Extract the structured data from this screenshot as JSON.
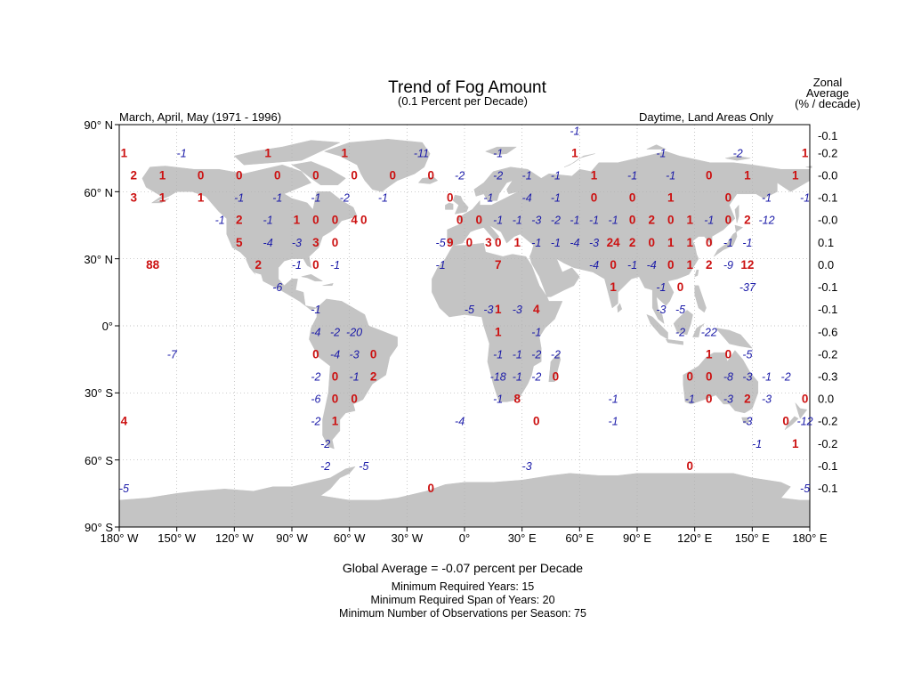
{
  "title": "Trend of Fog Amount",
  "subtitle": "(0.1 Percent per Decade)",
  "season_label": "March, April, May (1971 - 1996)",
  "scope_label": "Daytime, Land Areas Only",
  "zonal_header": [
    "Zonal",
    "Average",
    "(% / decade)"
  ],
  "lat_labels": [
    "90° N",
    "60° N",
    "30° N",
    "0°",
    "30° S",
    "60° S",
    "90° S"
  ],
  "lon_labels": [
    "180° W",
    "150° W",
    "120° W",
    "90° W",
    "60° W",
    "30° W",
    "0°",
    "30° E",
    "60° E",
    "90° E",
    "120° E",
    "150° E",
    "180° E"
  ],
  "zonal_averages": [
    "-0.1",
    "-0.2",
    "-0.0",
    "-0.1",
    "-0.0",
    "0.1",
    "0.0",
    "-0.1",
    "-0.1",
    "-0.6",
    "-0.2",
    "-0.3",
    "0.0",
    "-0.2",
    "-0.2",
    "-0.1",
    "-0.1"
  ],
  "colors": {
    "land": "#c4c4c4",
    "positive": "#cc1111",
    "negative": "#1a1aa8",
    "grid": "#b0b0b0"
  },
  "trend_values": [
    {
      "lon": -177.5,
      "lat": 77.5,
      "v": "1"
    },
    {
      "lon": -147.5,
      "lat": 77.5,
      "v": "-1"
    },
    {
      "lon": -102.5,
      "lat": 77.5,
      "v": "1"
    },
    {
      "lon": -62.5,
      "lat": 77.5,
      "v": "1"
    },
    {
      "lon": -22.5,
      "lat": 77.5,
      "v": "-11"
    },
    {
      "lon": 17.5,
      "lat": 77.5,
      "v": "-1"
    },
    {
      "lon": 57.5,
      "lat": 87.5,
      "v": "-1"
    },
    {
      "lon": 57.5,
      "lat": 77.5,
      "v": "1"
    },
    {
      "lon": 102.5,
      "lat": 77.5,
      "v": "-1"
    },
    {
      "lon": 142.5,
      "lat": 77.5,
      "v": "-2"
    },
    {
      "lon": 177.5,
      "lat": 77.5,
      "v": "1"
    },
    {
      "lon": -172.5,
      "lat": 67.5,
      "v": "2"
    },
    {
      "lon": -157.5,
      "lat": 67.5,
      "v": "1"
    },
    {
      "lon": -137.5,
      "lat": 67.5,
      "v": "0"
    },
    {
      "lon": -117.5,
      "lat": 67.5,
      "v": "0"
    },
    {
      "lon": -97.5,
      "lat": 67.5,
      "v": "0"
    },
    {
      "lon": -77.5,
      "lat": 67.5,
      "v": "0"
    },
    {
      "lon": -57.5,
      "lat": 67.5,
      "v": "0"
    },
    {
      "lon": -37.5,
      "lat": 67.5,
      "v": "0"
    },
    {
      "lon": -17.5,
      "lat": 67.5,
      "v": "0"
    },
    {
      "lon": -2.5,
      "lat": 67.5,
      "v": "-2"
    },
    {
      "lon": 17.5,
      "lat": 67.5,
      "v": "-2"
    },
    {
      "lon": 32.5,
      "lat": 67.5,
      "v": "-1"
    },
    {
      "lon": 47.5,
      "lat": 67.5,
      "v": "-1"
    },
    {
      "lon": 67.5,
      "lat": 67.5,
      "v": "1"
    },
    {
      "lon": 87.5,
      "lat": 67.5,
      "v": "-1"
    },
    {
      "lon": 107.5,
      "lat": 67.5,
      "v": "-1"
    },
    {
      "lon": 127.5,
      "lat": 67.5,
      "v": "0"
    },
    {
      "lon": 147.5,
      "lat": 67.5,
      "v": "1"
    },
    {
      "lon": 172.5,
      "lat": 67.5,
      "v": "1"
    },
    {
      "lon": -172.5,
      "lat": 57.5,
      "v": "3"
    },
    {
      "lon": -157.5,
      "lat": 57.5,
      "v": "1"
    },
    {
      "lon": -137.5,
      "lat": 57.5,
      "v": "1"
    },
    {
      "lon": -117.5,
      "lat": 57.5,
      "v": "-1"
    },
    {
      "lon": -97.5,
      "lat": 57.5,
      "v": "-1"
    },
    {
      "lon": -77.5,
      "lat": 57.5,
      "v": "-1"
    },
    {
      "lon": -62.5,
      "lat": 57.5,
      "v": "-2"
    },
    {
      "lon": -42.5,
      "lat": 57.5,
      "v": "-1"
    },
    {
      "lon": -7.5,
      "lat": 57.5,
      "v": "0"
    },
    {
      "lon": 12.5,
      "lat": 57.5,
      "v": "-1"
    },
    {
      "lon": 32.5,
      "lat": 57.5,
      "v": "-4"
    },
    {
      "lon": 47.5,
      "lat": 57.5,
      "v": "-1"
    },
    {
      "lon": 67.5,
      "lat": 57.5,
      "v": "0"
    },
    {
      "lon": 87.5,
      "lat": 57.5,
      "v": "0"
    },
    {
      "lon": 107.5,
      "lat": 57.5,
      "v": "1"
    },
    {
      "lon": 137.5,
      "lat": 57.5,
      "v": "0"
    },
    {
      "lon": 157.5,
      "lat": 57.5,
      "v": "-1"
    },
    {
      "lon": 177.5,
      "lat": 57.5,
      "v": "-1"
    },
    {
      "lon": -127.5,
      "lat": 47.5,
      "v": "-1"
    },
    {
      "lon": -117.5,
      "lat": 47.5,
      "v": "2"
    },
    {
      "lon": -102.5,
      "lat": 47.5,
      "v": "-1"
    },
    {
      "lon": -87.5,
      "lat": 47.5,
      "v": "1"
    },
    {
      "lon": -77.5,
      "lat": 47.5,
      "v": "0"
    },
    {
      "lon": -67.5,
      "lat": 47.5,
      "v": "0"
    },
    {
      "lon": -57.5,
      "lat": 47.5,
      "v": "4"
    },
    {
      "lon": -52.5,
      "lat": 47.5,
      "v": "0"
    },
    {
      "lon": -2.5,
      "lat": 47.5,
      "v": "0"
    },
    {
      "lon": 7.5,
      "lat": 47.5,
      "v": "0"
    },
    {
      "lon": 17.5,
      "lat": 47.5,
      "v": "-1"
    },
    {
      "lon": 27.5,
      "lat": 47.5,
      "v": "-1"
    },
    {
      "lon": 37.5,
      "lat": 47.5,
      "v": "-3"
    },
    {
      "lon": 47.5,
      "lat": 47.5,
      "v": "-2"
    },
    {
      "lon": 57.5,
      "lat": 47.5,
      "v": "-1"
    },
    {
      "lon": 67.5,
      "lat": 47.5,
      "v": "-1"
    },
    {
      "lon": 77.5,
      "lat": 47.5,
      "v": "-1"
    },
    {
      "lon": 87.5,
      "lat": 47.5,
      "v": "0"
    },
    {
      "lon": 97.5,
      "lat": 47.5,
      "v": "2"
    },
    {
      "lon": 107.5,
      "lat": 47.5,
      "v": "0"
    },
    {
      "lon": 117.5,
      "lat": 47.5,
      "v": "1"
    },
    {
      "lon": 127.5,
      "lat": 47.5,
      "v": "-1"
    },
    {
      "lon": 137.5,
      "lat": 47.5,
      "v": "0"
    },
    {
      "lon": 147.5,
      "lat": 47.5,
      "v": "2"
    },
    {
      "lon": 157.5,
      "lat": 47.5,
      "v": "-12"
    },
    {
      "lon": -117.5,
      "lat": 37.5,
      "v": "5"
    },
    {
      "lon": -102.5,
      "lat": 37.5,
      "v": "-4"
    },
    {
      "lon": -87.5,
      "lat": 37.5,
      "v": "-3"
    },
    {
      "lon": -77.5,
      "lat": 37.5,
      "v": "3"
    },
    {
      "lon": -67.5,
      "lat": 37.5,
      "v": "0"
    },
    {
      "lon": -12.5,
      "lat": 37.5,
      "v": "-5"
    },
    {
      "lon": -7.5,
      "lat": 37.5,
      "v": "9"
    },
    {
      "lon": 2.5,
      "lat": 37.5,
      "v": "0"
    },
    {
      "lon": 12.5,
      "lat": 37.5,
      "v": "3"
    },
    {
      "lon": 17.5,
      "lat": 37.5,
      "v": "0"
    },
    {
      "lon": 27.5,
      "lat": 37.5,
      "v": "1"
    },
    {
      "lon": 37.5,
      "lat": 37.5,
      "v": "-1"
    },
    {
      "lon": 47.5,
      "lat": 37.5,
      "v": "-1"
    },
    {
      "lon": 57.5,
      "lat": 37.5,
      "v": "-4"
    },
    {
      "lon": 67.5,
      "lat": 37.5,
      "v": "-3"
    },
    {
      "lon": 77.5,
      "lat": 37.5,
      "v": "24"
    },
    {
      "lon": 87.5,
      "lat": 37.5,
      "v": "2"
    },
    {
      "lon": 97.5,
      "lat": 37.5,
      "v": "0"
    },
    {
      "lon": 107.5,
      "lat": 37.5,
      "v": "1"
    },
    {
      "lon": 117.5,
      "lat": 37.5,
      "v": "1"
    },
    {
      "lon": 127.5,
      "lat": 37.5,
      "v": "0"
    },
    {
      "lon": 137.5,
      "lat": 37.5,
      "v": "-1"
    },
    {
      "lon": 147.5,
      "lat": 37.5,
      "v": "-1"
    },
    {
      "lon": -162.5,
      "lat": 27.5,
      "v": "88"
    },
    {
      "lon": -107.5,
      "lat": 27.5,
      "v": "2"
    },
    {
      "lon": -87.5,
      "lat": 27.5,
      "v": "-1"
    },
    {
      "lon": -77.5,
      "lat": 27.5,
      "v": "0"
    },
    {
      "lon": -67.5,
      "lat": 27.5,
      "v": "-1"
    },
    {
      "lon": -12.5,
      "lat": 27.5,
      "v": "-1"
    },
    {
      "lon": 17.5,
      "lat": 27.5,
      "v": "7"
    },
    {
      "lon": 67.5,
      "lat": 27.5,
      "v": "-4"
    },
    {
      "lon": 77.5,
      "lat": 27.5,
      "v": "0"
    },
    {
      "lon": 87.5,
      "lat": 27.5,
      "v": "-1"
    },
    {
      "lon": 97.5,
      "lat": 27.5,
      "v": "-4"
    },
    {
      "lon": 107.5,
      "lat": 27.5,
      "v": "0"
    },
    {
      "lon": 117.5,
      "lat": 27.5,
      "v": "1"
    },
    {
      "lon": 127.5,
      "lat": 27.5,
      "v": "2"
    },
    {
      "lon": 137.5,
      "lat": 27.5,
      "v": "-9"
    },
    {
      "lon": 147.5,
      "lat": 27.5,
      "v": "12"
    },
    {
      "lon": -97.5,
      "lat": 17.5,
      "v": "-6"
    },
    {
      "lon": 77.5,
      "lat": 17.5,
      "v": "1"
    },
    {
      "lon": 102.5,
      "lat": 17.5,
      "v": "-1"
    },
    {
      "lon": 112.5,
      "lat": 17.5,
      "v": "0"
    },
    {
      "lon": 147.5,
      "lat": 17.5,
      "v": "-37"
    },
    {
      "lon": -77.5,
      "lat": 7.5,
      "v": "-1"
    },
    {
      "lon": 2.5,
      "lat": 7.5,
      "v": "-5"
    },
    {
      "lon": 12.5,
      "lat": 7.5,
      "v": "-3"
    },
    {
      "lon": 17.5,
      "lat": 7.5,
      "v": "1"
    },
    {
      "lon": 27.5,
      "lat": 7.5,
      "v": "-3"
    },
    {
      "lon": 37.5,
      "lat": 7.5,
      "v": "4"
    },
    {
      "lon": 102.5,
      "lat": 7.5,
      "v": "-3"
    },
    {
      "lon": 112.5,
      "lat": 7.5,
      "v": "-5"
    },
    {
      "lon": -77.5,
      "lat": -2.5,
      "v": "-4"
    },
    {
      "lon": -67.5,
      "lat": -2.5,
      "v": "-2"
    },
    {
      "lon": -57.5,
      "lat": -2.5,
      "v": "-20"
    },
    {
      "lon": 17.5,
      "lat": -2.5,
      "v": "1"
    },
    {
      "lon": 37.5,
      "lat": -2.5,
      "v": "-1"
    },
    {
      "lon": 112.5,
      "lat": -2.5,
      "v": "-2"
    },
    {
      "lon": 127.5,
      "lat": -2.5,
      "v": "-22"
    },
    {
      "lon": -152.5,
      "lat": -12.5,
      "v": "-7"
    },
    {
      "lon": -77.5,
      "lat": -12.5,
      "v": "0"
    },
    {
      "lon": -67.5,
      "lat": -12.5,
      "v": "-4"
    },
    {
      "lon": -57.5,
      "lat": -12.5,
      "v": "-3"
    },
    {
      "lon": -47.5,
      "lat": -12.5,
      "v": "0"
    },
    {
      "lon": 17.5,
      "lat": -12.5,
      "v": "-1"
    },
    {
      "lon": 27.5,
      "lat": -12.5,
      "v": "-1"
    },
    {
      "lon": 37.5,
      "lat": -12.5,
      "v": "-2"
    },
    {
      "lon": 47.5,
      "lat": -12.5,
      "v": "-2"
    },
    {
      "lon": 127.5,
      "lat": -12.5,
      "v": "1"
    },
    {
      "lon": 137.5,
      "lat": -12.5,
      "v": "0"
    },
    {
      "lon": 147.5,
      "lat": -12.5,
      "v": "-5"
    },
    {
      "lon": -77.5,
      "lat": -22.5,
      "v": "-2"
    },
    {
      "lon": -67.5,
      "lat": -22.5,
      "v": "0"
    },
    {
      "lon": -57.5,
      "lat": -22.5,
      "v": "-1"
    },
    {
      "lon": -47.5,
      "lat": -22.5,
      "v": "2"
    },
    {
      "lon": 17.5,
      "lat": -22.5,
      "v": "-18"
    },
    {
      "lon": 27.5,
      "lat": -22.5,
      "v": "-1"
    },
    {
      "lon": 37.5,
      "lat": -22.5,
      "v": "-2"
    },
    {
      "lon": 47.5,
      "lat": -22.5,
      "v": "0"
    },
    {
      "lon": 117.5,
      "lat": -22.5,
      "v": "0"
    },
    {
      "lon": 127.5,
      "lat": -22.5,
      "v": "0"
    },
    {
      "lon": 137.5,
      "lat": -22.5,
      "v": "-8"
    },
    {
      "lon": 147.5,
      "lat": -22.5,
      "v": "-3"
    },
    {
      "lon": 157.5,
      "lat": -22.5,
      "v": "-1"
    },
    {
      "lon": 167.5,
      "lat": -22.5,
      "v": "-2"
    },
    {
      "lon": -77.5,
      "lat": -32.5,
      "v": "-6"
    },
    {
      "lon": -67.5,
      "lat": -32.5,
      "v": "0"
    },
    {
      "lon": -57.5,
      "lat": -32.5,
      "v": "0"
    },
    {
      "lon": 17.5,
      "lat": -32.5,
      "v": "-1"
    },
    {
      "lon": 27.5,
      "lat": -32.5,
      "v": "8"
    },
    {
      "lon": 77.5,
      "lat": -32.5,
      "v": "-1"
    },
    {
      "lon": 117.5,
      "lat": -32.5,
      "v": "-1"
    },
    {
      "lon": 127.5,
      "lat": -32.5,
      "v": "0"
    },
    {
      "lon": 137.5,
      "lat": -32.5,
      "v": "-3"
    },
    {
      "lon": 147.5,
      "lat": -32.5,
      "v": "2"
    },
    {
      "lon": 157.5,
      "lat": -32.5,
      "v": "-3"
    },
    {
      "lon": 177.5,
      "lat": -32.5,
      "v": "0"
    },
    {
      "lon": -177.5,
      "lat": -42.5,
      "v": "4"
    },
    {
      "lon": -77.5,
      "lat": -42.5,
      "v": "-2"
    },
    {
      "lon": -67.5,
      "lat": -42.5,
      "v": "1"
    },
    {
      "lon": -2.5,
      "lat": -42.5,
      "v": "-4"
    },
    {
      "lon": 37.5,
      "lat": -42.5,
      "v": "0"
    },
    {
      "lon": 77.5,
      "lat": -42.5,
      "v": "-1"
    },
    {
      "lon": 147.5,
      "lat": -42.5,
      "v": "-3"
    },
    {
      "lon": 167.5,
      "lat": -42.5,
      "v": "0"
    },
    {
      "lon": 177.5,
      "lat": -42.5,
      "v": "-12"
    },
    {
      "lon": -72.5,
      "lat": -52.5,
      "v": "-2"
    },
    {
      "lon": 152.5,
      "lat": -52.5,
      "v": "-1"
    },
    {
      "lon": 172.5,
      "lat": -52.5,
      "v": "1"
    },
    {
      "lon": -72.5,
      "lat": -62.5,
      "v": "-2"
    },
    {
      "lon": -52.5,
      "lat": -62.5,
      "v": "-5"
    },
    {
      "lon": 32.5,
      "lat": -62.5,
      "v": "-3"
    },
    {
      "lon": 117.5,
      "lat": -62.5,
      "v": "0"
    },
    {
      "lon": -177.5,
      "lat": -72.5,
      "v": "-5"
    },
    {
      "lon": -17.5,
      "lat": -72.5,
      "v": "0"
    },
    {
      "lon": 177.5,
      "lat": -72.5,
      "v": "-5"
    }
  ],
  "global_average_text": "Global Average = -0.07 percent per Decade",
  "footer_lines": [
    "Minimum Required Years: 15",
    "Minimum Required Span of Years: 20",
    "Minimum Number of Observations per Season: 75"
  ]
}
